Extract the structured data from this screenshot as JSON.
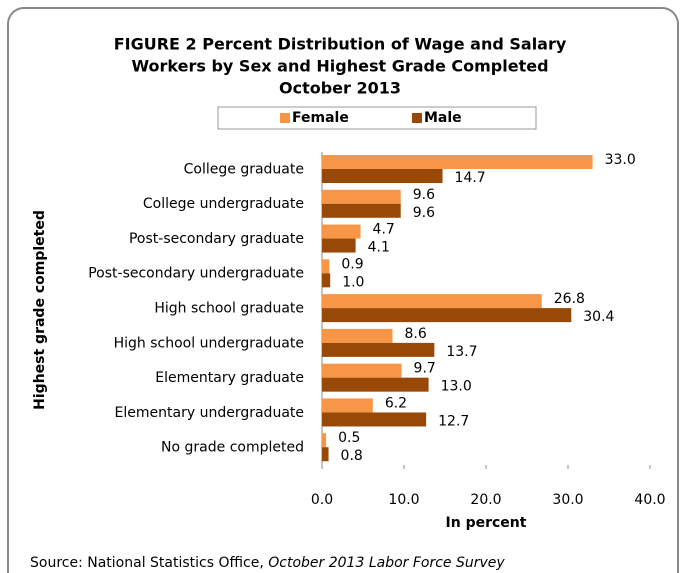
{
  "chart_data": {
    "type": "bar",
    "orientation": "horizontal",
    "title_lines": [
      "FIGURE 2 Percent Distribution of Wage and Salary",
      "Workers by Sex and Highest Grade Completed",
      "October 2013"
    ],
    "categories": [
      "College graduate",
      "College undergraduate",
      "Post-secondary graduate",
      "Post-secondary undergraduate",
      "High school graduate",
      "High school undergraduate",
      "Elementary graduate",
      "Elementary undergraduate",
      "No grade completed"
    ],
    "series": [
      {
        "name": "Female",
        "color": "#f79646",
        "values": [
          33.0,
          9.6,
          4.7,
          0.9,
          26.8,
          8.6,
          9.7,
          6.2,
          0.5
        ],
        "value_labels": [
          "33.0",
          "9.6",
          "4.7",
          "0.9",
          "26.8",
          "8.6",
          "9.7",
          "6.2",
          "0.5"
        ]
      },
      {
        "name": "Male",
        "color": "#984807",
        "values": [
          14.7,
          9.6,
          4.1,
          1.0,
          30.4,
          13.7,
          13.0,
          12.7,
          0.8
        ],
        "value_labels": [
          "14.7",
          "9.6",
          "4.1",
          "1.0",
          "30.4",
          "13.7",
          "13.0",
          "12.7",
          "0.8"
        ]
      }
    ],
    "xlim": [
      0,
      40
    ],
    "xticks": [
      {
        "value": 0,
        "label": "0.0"
      },
      {
        "value": 10,
        "label": "10.0"
      },
      {
        "value": 20,
        "label": "20.0"
      },
      {
        "value": 30,
        "label": "30.0"
      },
      {
        "value": 40,
        "label": "40.0"
      }
    ],
    "xlabel": "In percent",
    "ylabel": "Highest grade completed",
    "legend": "top",
    "source": "Source: National Statistics Office, ",
    "source_title": "October 2013 Labor Force Survey"
  }
}
